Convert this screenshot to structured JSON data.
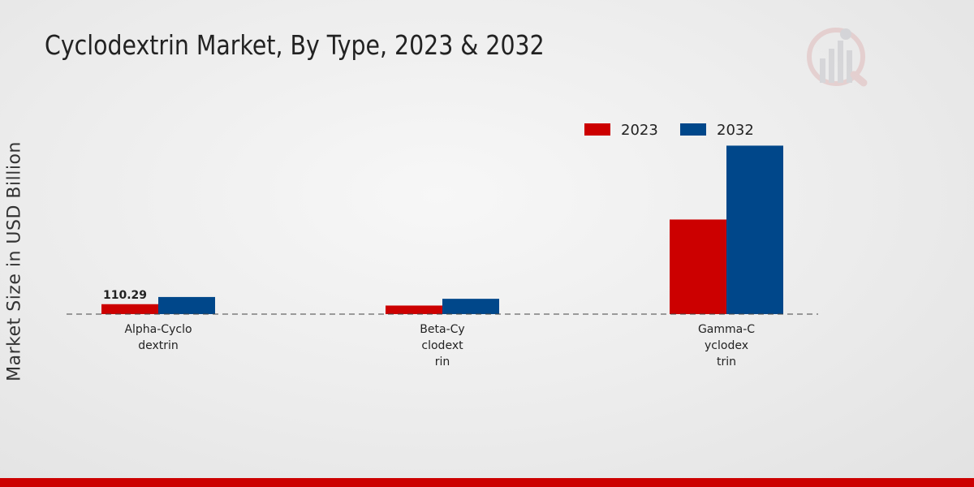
{
  "chart_data": {
    "type": "bar",
    "title": "Cyclodextrin Market, By Type, 2023 & 2032",
    "ylabel": "Market Size in USD Billion",
    "categories": [
      "Alpha-Cyclo dextrin",
      "Beta-Cy clodext rin",
      "Gamma-C yclodex trin"
    ],
    "category_lines": [
      [
        "Alpha-Cyclo",
        "dextrin"
      ],
      [
        "Beta-Cy",
        "clodext",
        "rin"
      ],
      [
        "Gamma-C",
        "yclodex",
        "trin"
      ]
    ],
    "series": [
      {
        "name": "2023",
        "color": "#cc0000",
        "values": [
          110.29,
          95,
          1050
        ]
      },
      {
        "name": "2032",
        "color": "#00478a",
        "values": [
          190,
          170,
          1870
        ]
      }
    ],
    "data_labels": [
      {
        "series": 0,
        "index": 0,
        "text": "110.29"
      }
    ],
    "ylim": [
      0,
      2000
    ],
    "grid": false,
    "legend": "top-center"
  },
  "branding": {
    "logo_icon": "market-research-logo-icon",
    "accent": "#cc0000"
  }
}
